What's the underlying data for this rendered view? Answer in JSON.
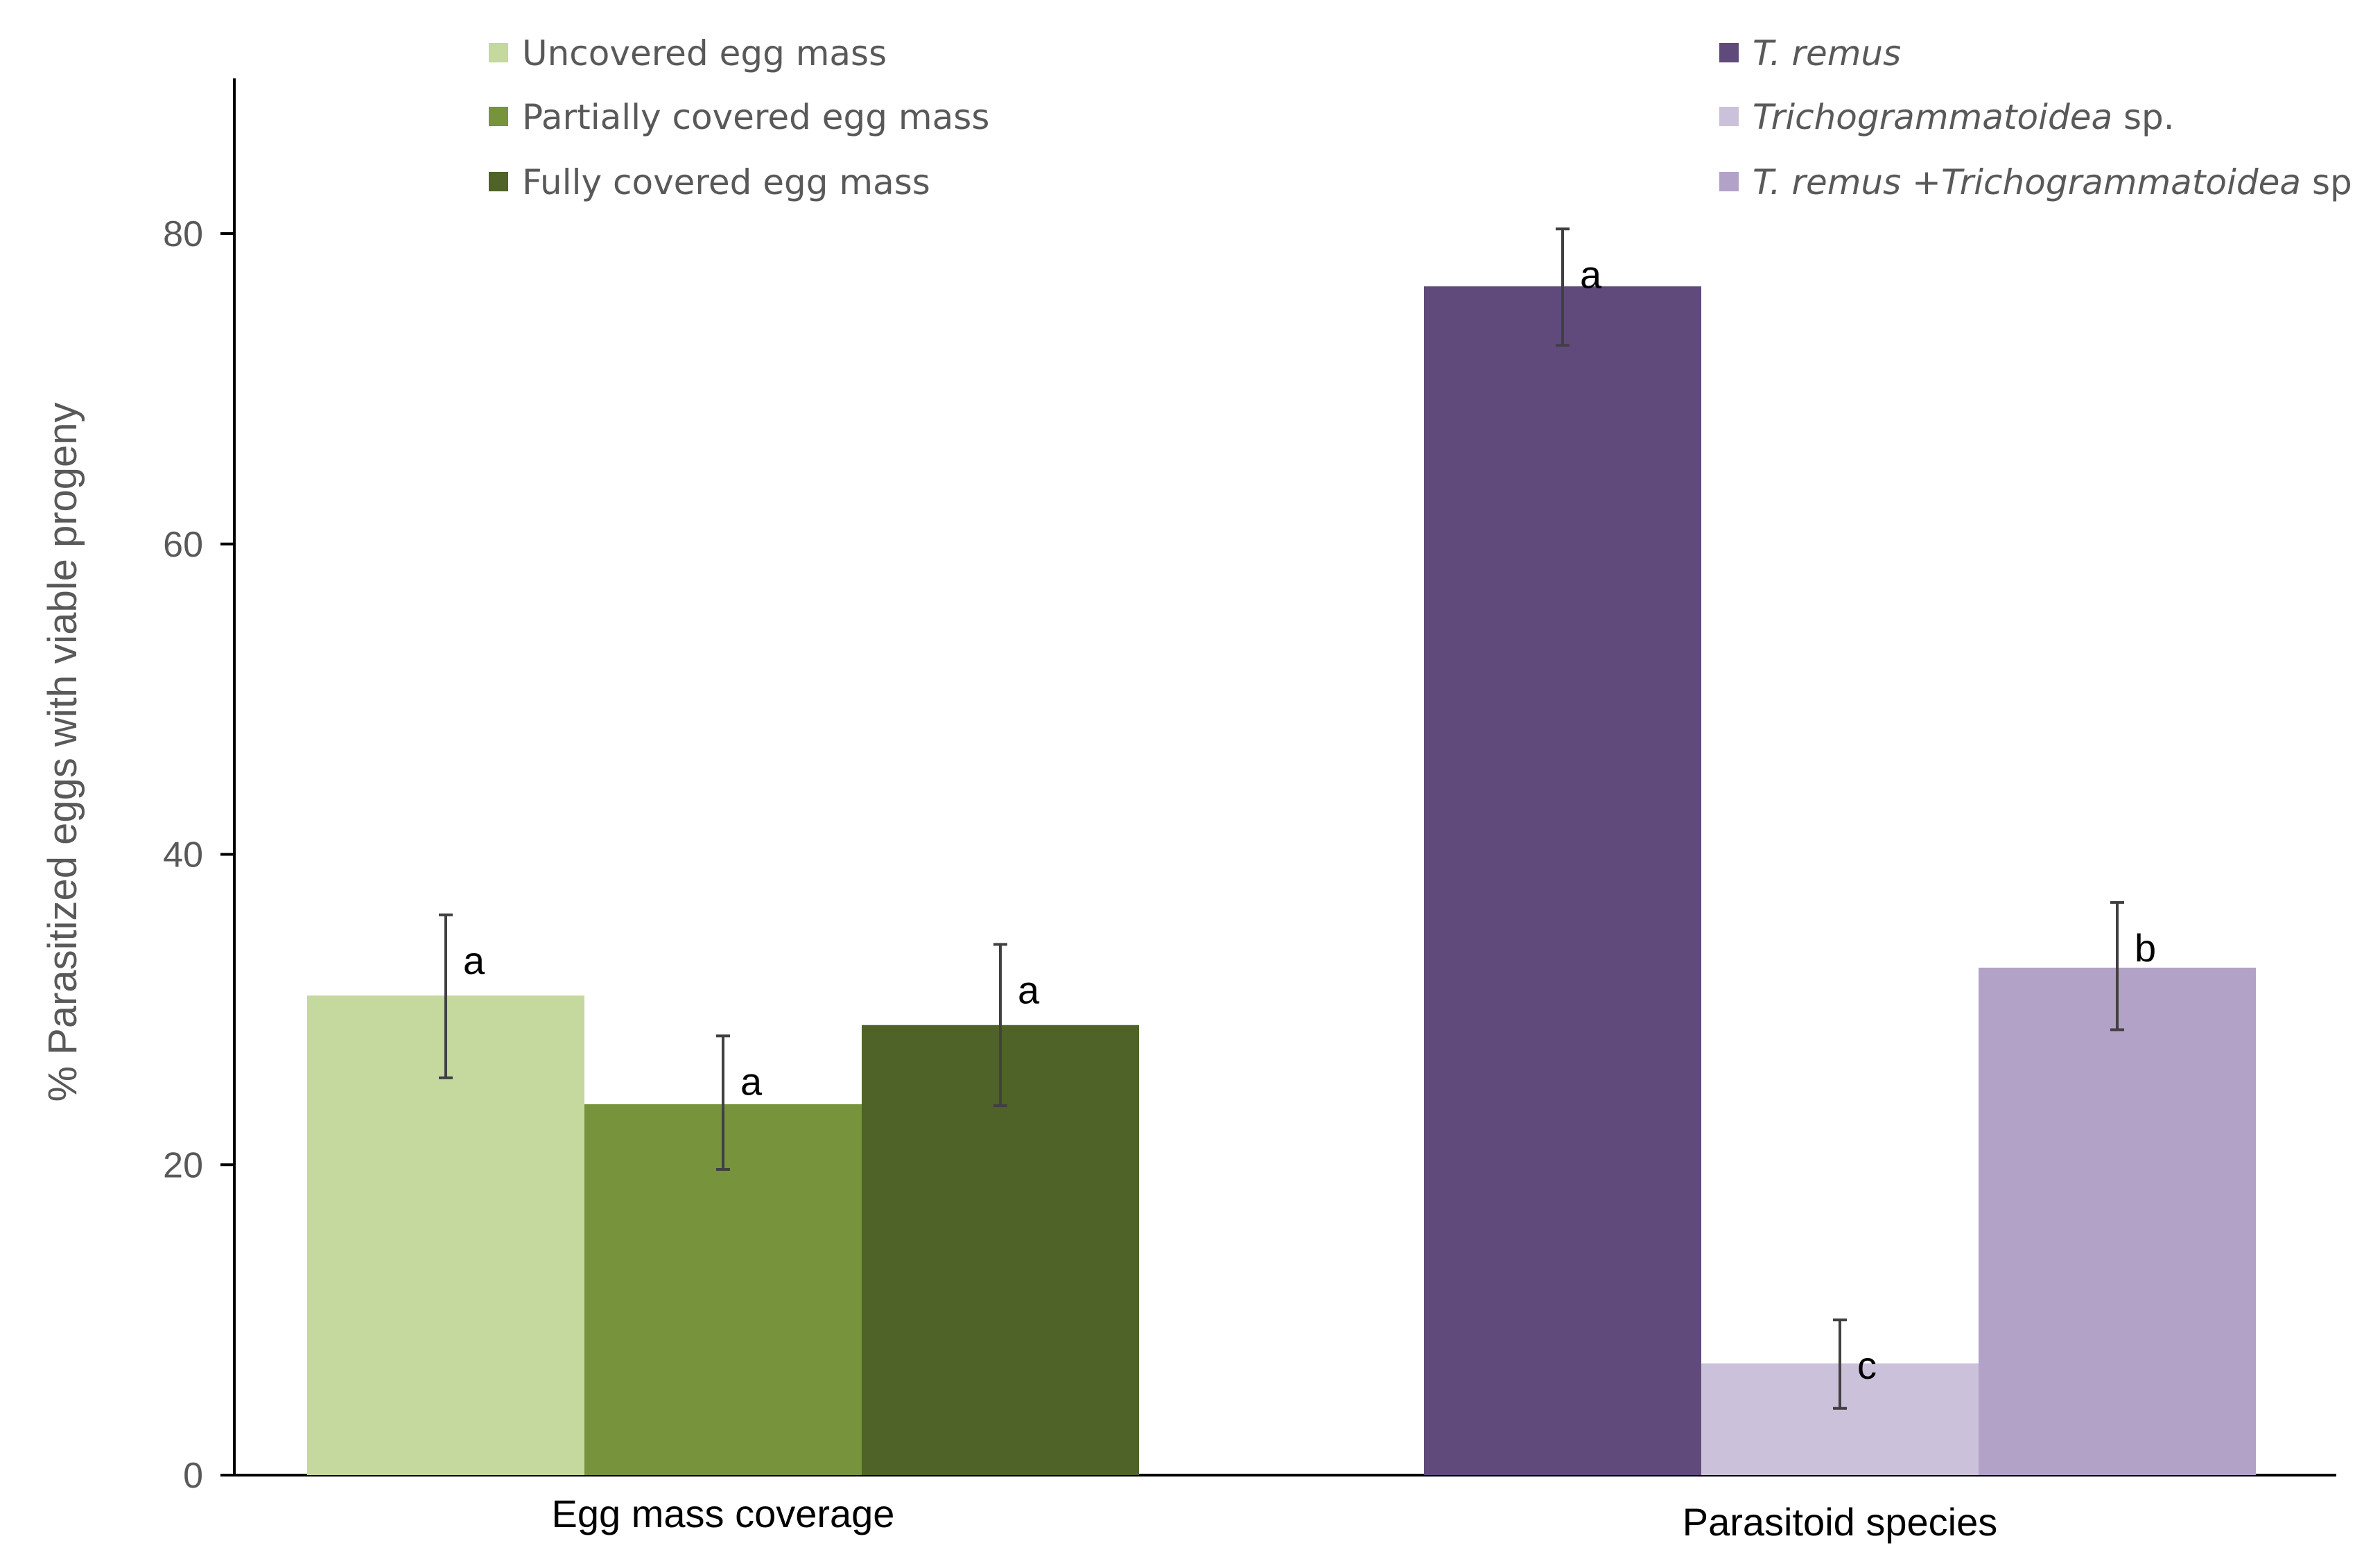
{
  "chart_data": {
    "type": "bar",
    "title": "",
    "xlabel": "",
    "ylabel": "% Parasitized eggs with viable progeny",
    "ylim": [
      0,
      90
    ],
    "yticks": [
      0,
      20,
      40,
      60,
      80
    ],
    "grid": false,
    "groups": [
      {
        "label": "Egg mass coverage",
        "bars": [
          {
            "series": "Uncovered egg mass",
            "value": 30.9,
            "err_low": 25.6,
            "err_high": 36.1,
            "letter": "a",
            "color": "#c5d89d"
          },
          {
            "series": "Partially covered egg mass",
            "value": 23.9,
            "err_low": 19.7,
            "err_high": 28.3,
            "letter": "a",
            "color": "#77933c"
          },
          {
            "series": "Fully covered egg mass",
            "value": 29.0,
            "err_low": 23.8,
            "err_high": 34.2,
            "letter": "a",
            "color": "#4f6228"
          }
        ]
      },
      {
        "label": "Parasitoid species",
        "bars": [
          {
            "series": "T. remus",
            "value": 76.6,
            "err_low": 72.8,
            "err_high": 80.3,
            "letter": "a",
            "color": "#604a7b"
          },
          {
            "series": "Trichogrammatoidea sp.",
            "value": 7.2,
            "err_low": 4.3,
            "err_high": 10.0,
            "letter": "c",
            "color": "#ccc1da"
          },
          {
            "series": "T. remus +Trichogrammatoidea sp.",
            "value": 32.7,
            "err_low": 28.7,
            "err_high": 36.9,
            "letter": "b",
            "color": "#b3a2c7"
          }
        ]
      }
    ],
    "legend": {
      "placement": "top",
      "left": [
        {
          "label": "Uncovered egg mass",
          "color": "#c5d89d"
        },
        {
          "label": "Partially covered egg mass",
          "color": "#77933c"
        },
        {
          "label": "Fully covered egg mass",
          "color": "#4f6228"
        }
      ],
      "right": [
        {
          "parts": [
            {
              "text": "T. remus",
              "italic": true
            }
          ],
          "color": "#604a7b"
        },
        {
          "parts": [
            {
              "text": "Trichogrammatoidea",
              "italic": true
            },
            {
              "text": " sp.",
              "italic": false
            }
          ],
          "color": "#ccc1da"
        },
        {
          "parts": [
            {
              "text": "T. remus +Trichogrammatoidea",
              "italic": true
            },
            {
              "text": " sp.",
              "italic": false
            }
          ],
          "color": "#b3a2c7"
        }
      ]
    }
  }
}
